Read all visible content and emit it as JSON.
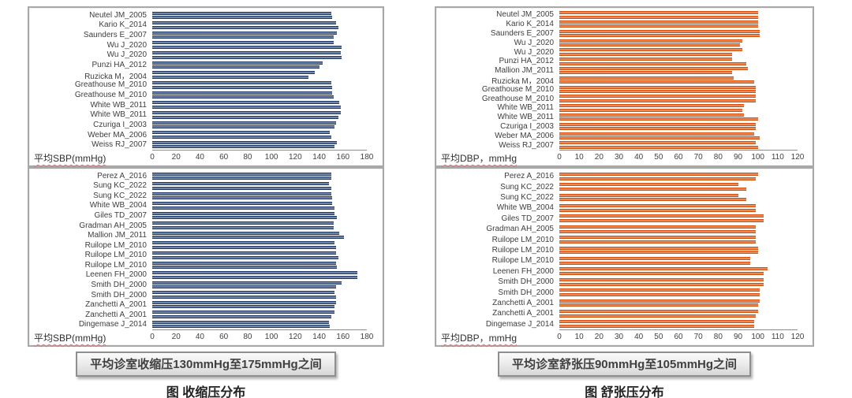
{
  "colors": {
    "bar_blue": "#1f3864",
    "bar_blue_light": "#c9d6e8",
    "bar_orange": "#d4500f",
    "bar_orange_light": "#f8c9ac",
    "frame_border": "#a8a8a8",
    "axis_line": "#8c8c8c",
    "spellcheck_underline": "#e87070"
  },
  "footers": {
    "left": {
      "box_text": "平均诊室收缩压130mmHg至175mmHg之间",
      "figure_title": "图 收缩压分布"
    },
    "right": {
      "box_text": "平均诊室舒张压90mmHg至105mmHg之间",
      "figure_title": "图 舒张压分布"
    }
  },
  "chart_data": [
    {
      "id": "sbp-top-left",
      "type": "bar",
      "orientation": "horizontal",
      "color": "blue",
      "axis_title": "平均SBP(mmHg)",
      "x_min": 0,
      "x_max": 180,
      "x_step": 20,
      "grid": false,
      "legend": "none",
      "studies": [
        {
          "label": "Neutel JM_2005",
          "values": [
            150,
            151
          ]
        },
        {
          "label": "Kario K_2014",
          "values": [
            154,
            156
          ]
        },
        {
          "label": "Saunders E_2007",
          "values": [
            155,
            152
          ]
        },
        {
          "label": "Wu J_2020",
          "values": [
            152,
            159
          ]
        },
        {
          "label": "Wu J_2020",
          "values": [
            158,
            159
          ]
        },
        {
          "label": "Punzi HA_2012",
          "values": [
            143,
            140
          ]
        },
        {
          "label": "Ruzicka M，2004",
          "values": [
            136,
            131
          ]
        },
        {
          "label": "Greathouse M_2010",
          "values": [
            150,
            151
          ]
        },
        {
          "label": "Greathouse M_2010",
          "values": [
            151,
            152
          ]
        },
        {
          "label": "White WB_2011",
          "values": [
            157,
            158
          ]
        },
        {
          "label": "White WB_2011",
          "values": [
            158,
            156
          ]
        },
        {
          "label": "Czuriga I_2003",
          "values": [
            154,
            153
          ]
        },
        {
          "label": "Weber MA_2006",
          "values": [
            149,
            150
          ]
        },
        {
          "label": "Weiss RJ_2007",
          "values": [
            155,
            153
          ]
        }
      ]
    },
    {
      "id": "dbp-top-right",
      "type": "bar",
      "orientation": "horizontal",
      "color": "orange",
      "axis_title": "平均DBP，mmHg",
      "x_min": 0,
      "x_max": 120,
      "x_step": 10,
      "grid": false,
      "legend": "none",
      "studies": [
        {
          "label": "Neutel JM_2005",
          "values": [
            100,
            100
          ]
        },
        {
          "label": "Kario K_2014",
          "values": [
            100,
            100
          ]
        },
        {
          "label": "Saunders E_2007",
          "values": [
            101,
            101
          ]
        },
        {
          "label": "Wu J_2020",
          "values": [
            92,
            91
          ]
        },
        {
          "label": "Wu J_2020",
          "values": [
            92,
            87
          ]
        },
        {
          "label": "Punzi HA_2012",
          "values": [
            87,
            94
          ]
        },
        {
          "label": "Mallion JM_2011",
          "values": [
            95,
            87
          ]
        },
        {
          "label": "Ruzicka M，2004",
          "values": [
            88,
            98
          ]
        },
        {
          "label": "Greathouse M_2010",
          "values": [
            99,
            99
          ]
        },
        {
          "label": "Greathouse M_2010",
          "values": [
            99,
            99
          ]
        },
        {
          "label": "White WB_2011",
          "values": [
            93,
            92
          ]
        },
        {
          "label": "White WB_2011",
          "values": [
            93,
            100
          ]
        },
        {
          "label": "Czuriga I_2003",
          "values": [
            99,
            99
          ]
        },
        {
          "label": "Weber MA_2006",
          "values": [
            98,
            101
          ]
        },
        {
          "label": "Weiss RJ_2007",
          "values": [
            99,
            100
          ]
        }
      ]
    },
    {
      "id": "sbp-bottom-left",
      "type": "bar",
      "orientation": "horizontal",
      "color": "blue",
      "axis_title": "平均SBP(mmHg)",
      "x_min": 0,
      "x_max": 180,
      "x_step": 20,
      "grid": false,
      "legend": "none",
      "studies": [
        {
          "label": "Perez A_2016",
          "values": [
            150,
            150
          ]
        },
        {
          "label": "Sung KC_2022",
          "values": [
            148,
            150
          ]
        },
        {
          "label": "Sung KC_2022",
          "values": [
            150,
            151
          ]
        },
        {
          "label": "White WB_2004",
          "values": [
            151,
            153
          ]
        },
        {
          "label": "Giles TD_2007",
          "values": [
            153,
            155
          ]
        },
        {
          "label": "Gradman AH_2005",
          "values": [
            152,
            152
          ]
        },
        {
          "label": "Mallion JM_2011",
          "values": [
            157,
            161
          ]
        },
        {
          "label": "Ruilope LM_2010",
          "values": [
            153,
            154
          ]
        },
        {
          "label": "Ruilope LM_2010",
          "values": [
            154,
            156
          ]
        },
        {
          "label": "Ruilope LM_2010",
          "values": [
            154,
            155
          ]
        },
        {
          "label": "Leenen FH_2000",
          "values": [
            172,
            172
          ]
        },
        {
          "label": "Smith DH_2000",
          "values": [
            159,
            154
          ]
        },
        {
          "label": "Smith DH_2000",
          "values": [
            153,
            154
          ]
        },
        {
          "label": "Zanchetti A_2001",
          "values": [
            154,
            153
          ]
        },
        {
          "label": "Zanchetti A_2001",
          "values": [
            153,
            150
          ]
        },
        {
          "label": "Dingemase J_2014",
          "values": [
            148,
            149
          ]
        }
      ]
    },
    {
      "id": "dbp-bottom-right",
      "type": "bar",
      "orientation": "horizontal",
      "color": "orange",
      "axis_title": "平均DBP，mmHg",
      "x_min": 0,
      "x_max": 120,
      "x_step": 10,
      "grid": false,
      "legend": "none",
      "studies": [
        {
          "label": "Perez A_2016",
          "values": [
            100,
            99
          ]
        },
        {
          "label": "Sung KC_2022",
          "values": [
            90,
            94
          ]
        },
        {
          "label": "Sung KC_2022",
          "values": [
            90,
            94
          ]
        },
        {
          "label": "White WB_2004",
          "values": [
            99,
            99
          ]
        },
        {
          "label": "Giles TD_2007",
          "values": [
            103,
            103
          ]
        },
        {
          "label": "Gradman AH_2005",
          "values": [
            99,
            99
          ]
        },
        {
          "label": "Ruilope LM_2010",
          "values": [
            99,
            99
          ]
        },
        {
          "label": "Ruilope LM_2010",
          "values": [
            100,
            100
          ]
        },
        {
          "label": "Ruilope LM_2010",
          "values": [
            96,
            96
          ]
        },
        {
          "label": "Leenen FH_2000",
          "values": [
            105,
            103
          ]
        },
        {
          "label": "Smith DH_2000",
          "values": [
            103,
            103
          ]
        },
        {
          "label": "Smith DH_2000",
          "values": [
            101,
            101
          ]
        },
        {
          "label": "Zanchetti A_2001",
          "values": [
            101,
            100
          ]
        },
        {
          "label": "Zanchetti A_2001",
          "values": [
            100,
            99
          ]
        },
        {
          "label": "Dingemase J_2014",
          "values": [
            98,
            98
          ]
        }
      ]
    }
  ]
}
